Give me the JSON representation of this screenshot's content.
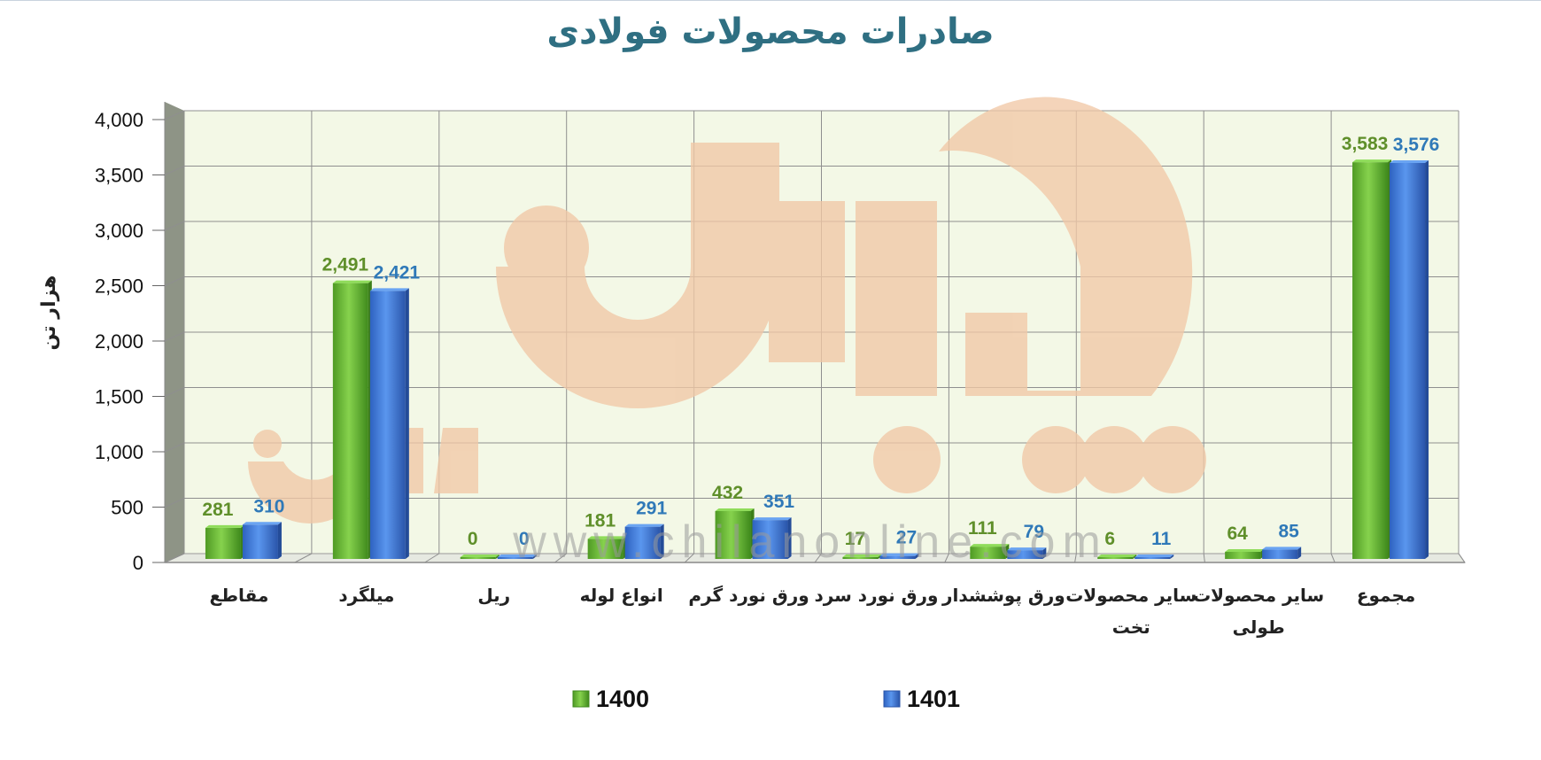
{
  "watermark": {
    "text": "www.chilanonline.com"
  },
  "colors": {
    "s1400": "#6cbf3c",
    "s1401": "#3a78d8",
    "label1400": "#5f8f2a",
    "label1401": "#2f79b8",
    "title": "#2f6f82",
    "plot_bg": "#f3f8e6",
    "grid": "#8f8f8f",
    "watermark_logo": "#f1c8a6"
  },
  "chart_data": {
    "type": "bar",
    "title": "صادرات محصولات فولادی",
    "ylabel": "هزار تن",
    "xlabel": "",
    "ylim": [
      0,
      4000
    ],
    "yticks": [
      "0",
      "500",
      "1,000",
      "1,500",
      "2,000",
      "2,500",
      "3,000",
      "3,500",
      "4,000"
    ],
    "grid": true,
    "legend_position": "bottom",
    "categories": [
      [
        "مقاطع"
      ],
      [
        "میلگرد"
      ],
      [
        "ریل"
      ],
      [
        "انواع لوله"
      ],
      [
        "ورق نورد گرم"
      ],
      [
        "ورق نورد سرد"
      ],
      [
        "ورق پوششدار"
      ],
      [
        "سایر محصولات",
        "تخت"
      ],
      [
        "سایر محصولات",
        "طولی"
      ],
      [
        "مجموع"
      ]
    ],
    "series": [
      {
        "name": "1400",
        "values": [
          281,
          2491,
          0,
          181,
          432,
          17,
          111,
          6,
          64,
          3583
        ],
        "labels": [
          "281",
          "2,491",
          "0",
          "181",
          "432",
          "17",
          "111",
          "6",
          "64",
          "3,583"
        ]
      },
      {
        "name": "1401",
        "values": [
          310,
          2421,
          0,
          291,
          351,
          27,
          79,
          11,
          85,
          3576
        ],
        "labels": [
          "310",
          "2,421",
          "0",
          "291",
          "351",
          "27",
          "79",
          "11",
          "85",
          "3,576"
        ]
      }
    ]
  }
}
